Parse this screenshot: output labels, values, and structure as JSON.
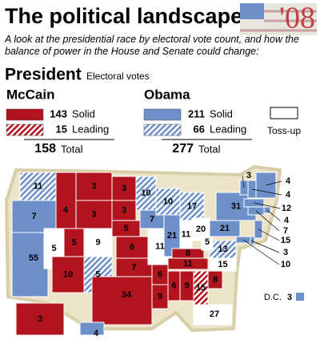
{
  "header": {
    "title": "The political landscape",
    "badge": "'08",
    "subtitle": "A look at the presidential race by electoral vote count, and how the balance of power in the House and Senate could change:"
  },
  "section": {
    "title": "President",
    "subtitle": "Electoral votes"
  },
  "candidates": [
    {
      "name": "McCain",
      "color": "#b2141e",
      "solid": {
        "value": 143,
        "label": "Solid"
      },
      "leading": {
        "value": 15,
        "label": "Leading"
      },
      "total": {
        "value": 158,
        "label": "Total"
      }
    },
    {
      "name": "Obama",
      "color": "#6d90c8",
      "solid": {
        "value": 211,
        "label": "Solid"
      },
      "leading": {
        "value": 66,
        "label": "Leading"
      },
      "total": {
        "value": 277,
        "label": "Total"
      }
    }
  ],
  "tossup": {
    "label": "Toss-up",
    "color": "#ffffff"
  },
  "map": {
    "states": [
      {
        "value": 11,
        "color": "#6d90c8",
        "hatch": true
      },
      {
        "value": 4,
        "color": "#b2141e",
        "hatch": false
      },
      {
        "value": 3,
        "color": "#b2141e",
        "hatch": false
      },
      {
        "value": 3,
        "color": "#b2141e",
        "hatch": false
      },
      {
        "value": 7,
        "color": "#6d90c8",
        "hatch": false
      },
      {
        "value": 55,
        "color": "#6d90c8",
        "hatch": false
      },
      {
        "value": 5,
        "color": "#ffffff",
        "hatch": false
      },
      {
        "value": 5,
        "color": "#b2141e",
        "hatch": false
      },
      {
        "value": 9,
        "color": "#ffffff",
        "hatch": false
      },
      {
        "value": 10,
        "color": "#b2141e",
        "hatch": false
      },
      {
        "value": 5,
        "color": "#6d90c8",
        "hatch": true
      },
      {
        "value": 3,
        "color": "#b2141e",
        "hatch": false
      },
      {
        "value": 3,
        "color": "#b2141e",
        "hatch": false
      },
      {
        "value": 5,
        "color": "#b2141e",
        "hatch": false
      },
      {
        "value": 6,
        "color": "#b2141e",
        "hatch": false
      },
      {
        "value": 7,
        "color": "#b2141e",
        "hatch": false
      },
      {
        "value": 34,
        "color": "#b2141e",
        "hatch": false
      },
      {
        "value": 10,
        "color": "#6d90c8",
        "hatch": true
      },
      {
        "value": 7,
        "color": "#6d90c8",
        "hatch": false
      },
      {
        "value": 11,
        "color": "#ffffff",
        "hatch": false
      },
      {
        "value": 6,
        "color": "#b2141e",
        "hatch": false
      },
      {
        "value": 9,
        "color": "#b2141e",
        "hatch": false
      },
      {
        "value": 10,
        "color": "#6d90c8",
        "hatch": true
      },
      {
        "value": 21,
        "color": "#6d90c8",
        "hatch": false
      },
      {
        "value": 17,
        "color": "#6d90c8",
        "hatch": true
      },
      {
        "value": 11,
        "color": "#ffffff",
        "hatch": false
      },
      {
        "value": 20,
        "color": "#ffffff",
        "hatch": false
      },
      {
        "value": 8,
        "color": "#b2141e",
        "hatch": false
      },
      {
        "value": 11,
        "color": "#b2141e",
        "hatch": false
      },
      {
        "value": 6,
        "color": "#b2141e",
        "hatch": false
      },
      {
        "value": 9,
        "color": "#b2141e",
        "hatch": false
      },
      {
        "value": 15,
        "color": "#b2141e",
        "hatch": true
      },
      {
        "value": 27,
        "color": "#ffffff",
        "hatch": false
      },
      {
        "value": 8,
        "color": "#b2141e",
        "hatch": false
      },
      {
        "value": 15,
        "color": "#ffffff",
        "hatch": false
      },
      {
        "value": 13,
        "color": "#6d90c8",
        "hatch": true
      },
      {
        "value": 5,
        "color": "#ffffff",
        "hatch": false
      },
      {
        "value": 21,
        "color": "#6d90c8",
        "hatch": false
      },
      {
        "value": 31,
        "color": "#6d90c8",
        "hatch": false
      },
      {
        "value": 3,
        "color": "#6d90c8",
        "hatch": false
      },
      {
        "value": 4,
        "color": "#6d90c8",
        "hatch": false
      },
      {
        "value": 4,
        "color": "#6d90c8",
        "hatch": false
      },
      {
        "value": 12,
        "color": "#6d90c8",
        "hatch": false
      },
      {
        "value": 4,
        "color": "#6d90c8",
        "hatch": false
      },
      {
        "value": 7,
        "color": "#6d90c8",
        "hatch": false
      },
      {
        "value": 15,
        "color": "#6d90c8",
        "hatch": false
      },
      {
        "value": 3,
        "color": "#6d90c8",
        "hatch": false
      },
      {
        "value": 10,
        "color": "#6d90c8",
        "hatch": false
      },
      {
        "value": 3,
        "color": "#b2141e",
        "hatch": false
      },
      {
        "value": 4,
        "color": "#6d90c8",
        "hatch": false
      }
    ],
    "dc": {
      "label": "D.C.",
      "value": 3,
      "color": "#6d90c8"
    }
  }
}
